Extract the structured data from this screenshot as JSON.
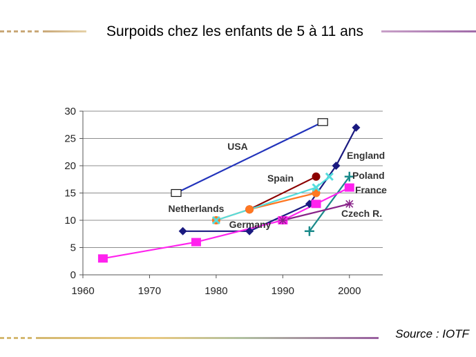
{
  "slide": {
    "title": "Surpoids chez les enfants de 5 à 11 ans",
    "source": "Source : IOTF"
  },
  "colors": {
    "deco_left": "#c9a878",
    "deco_right": "#a06aa8",
    "deco_bottom_left": "#d4b870",
    "deco_bottom_right": "#9a5fa0"
  },
  "chart_data": {
    "type": "line",
    "xlim": [
      1960,
      2005
    ],
    "ylim": [
      0,
      30
    ],
    "x_ticks": [
      1960,
      1970,
      1980,
      1990,
      2000
    ],
    "y_ticks": [
      0,
      5,
      10,
      15,
      20,
      25,
      30
    ],
    "grid": "horizontal",
    "series": [
      {
        "name": "USA",
        "color": "#2233bb",
        "marker": "open-square",
        "points": [
          [
            1974,
            15
          ],
          [
            1996,
            28
          ]
        ]
      },
      {
        "name": "England",
        "color": "#1a1a80",
        "marker": "diamond",
        "points": [
          [
            1975,
            8
          ],
          [
            1985,
            8
          ],
          [
            1994,
            13
          ],
          [
            1998,
            20
          ],
          [
            2001,
            27
          ]
        ]
      },
      {
        "name": "Spain",
        "color": "#8b0000",
        "marker": "circle",
        "points": [
          [
            1985,
            12
          ],
          [
            1995,
            18
          ]
        ]
      },
      {
        "name": "Netherlands",
        "color": "#ff7722",
        "marker": "circle",
        "points": [
          [
            1980,
            10
          ],
          [
            1985,
            12
          ],
          [
            1995,
            15
          ]
        ]
      },
      {
        "name": "Germany",
        "color": "#55dddd",
        "marker": "cross",
        "points": [
          [
            1980,
            10
          ],
          [
            1995,
            16
          ],
          [
            1997,
            18
          ]
        ]
      },
      {
        "name": "Poland",
        "color": "#1a8a8a",
        "marker": "plus",
        "points": [
          [
            1994,
            8
          ],
          [
            2000,
            18
          ]
        ]
      },
      {
        "name": "France",
        "color": "#ff22ee",
        "marker": "square",
        "points": [
          [
            1963,
            3
          ],
          [
            1977,
            6
          ],
          [
            1990,
            10
          ],
          [
            1995,
            13
          ],
          [
            2000,
            16
          ]
        ]
      },
      {
        "name": "Czech R.",
        "color": "#882288",
        "marker": "star",
        "points": [
          [
            1990,
            10
          ],
          [
            2000,
            13
          ]
        ]
      }
    ]
  }
}
